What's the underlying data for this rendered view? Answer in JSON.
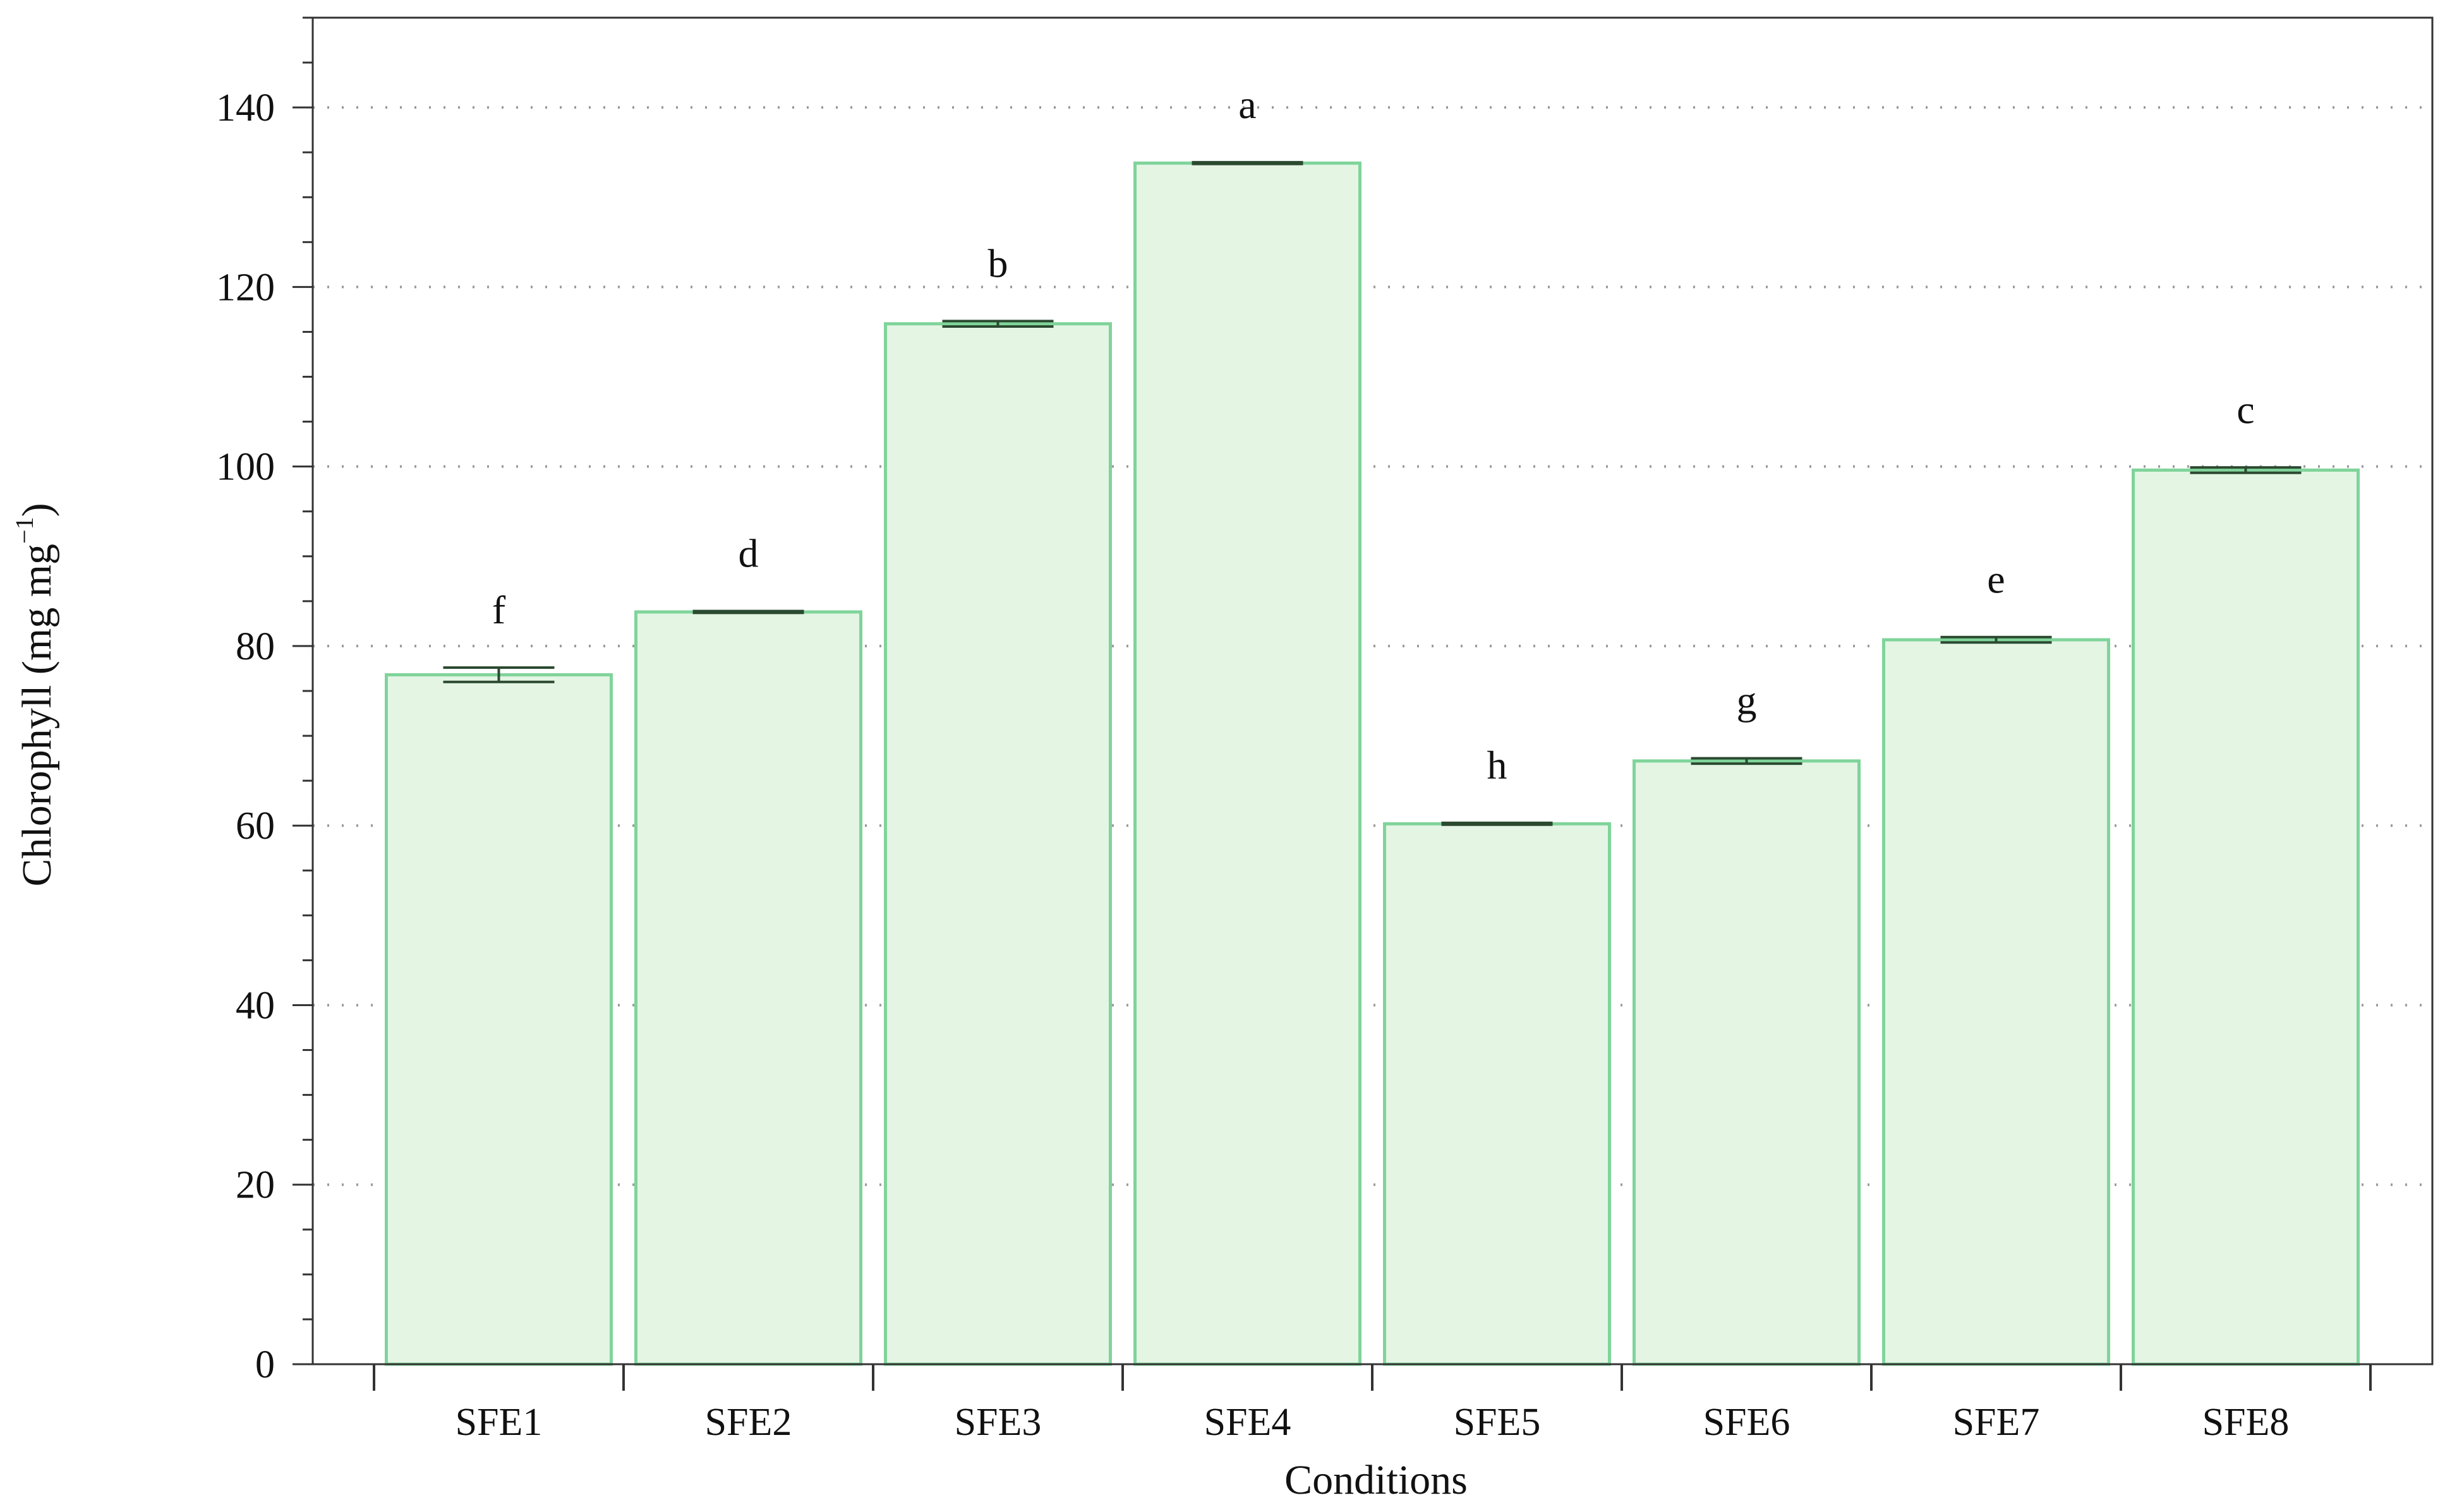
{
  "chart_data": {
    "type": "bar",
    "categories": [
      "SFE1",
      "SFE2",
      "SFE3",
      "SFE4",
      "SFE5",
      "SFE6",
      "SFE7",
      "SFE8"
    ],
    "values": [
      76.8,
      83.8,
      115.9,
      133.8,
      60.2,
      67.2,
      80.7,
      99.6
    ],
    "errors": [
      0.8,
      0.1,
      0.3,
      0.1,
      0.1,
      0.3,
      0.3,
      0.3
    ],
    "significance_letters": [
      "f",
      "d",
      "b",
      "a",
      "h",
      "g",
      "e",
      "c"
    ],
    "xlabel": "Conditions",
    "ylabel_main": "Chlorophyll (mg mg",
    "ylabel_sup": "−1",
    "ylabel_close": ")",
    "ylim": [
      0,
      150
    ],
    "yticks": [
      0,
      20,
      40,
      60,
      80,
      100,
      120,
      140
    ],
    "ytick_labels": [
      "0",
      "20",
      "40",
      "60",
      "80",
      "100",
      "120",
      "140"
    ],
    "grid": "horizontal dotted",
    "legend": "none",
    "colors": {
      "bar_fill": "#e4f5e4",
      "bar_stroke": "#7fd49a",
      "error_bar": "#2b4a30",
      "axis": "#333333",
      "grid": "#999999"
    }
  }
}
